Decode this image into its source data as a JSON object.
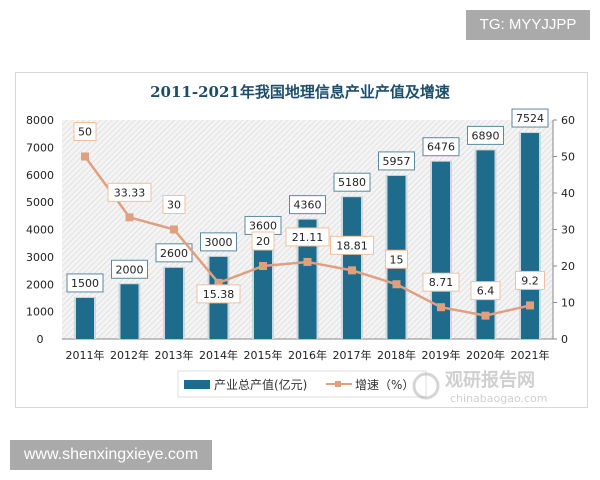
{
  "watermark_top": "TG: MYYJJPP",
  "watermark_bottom": "www.shenxingxieye.com",
  "logo": {
    "cn": "观研报告网",
    "en": "chinabaogao.com"
  },
  "chart_data": {
    "type": "bar+line",
    "title": "2011-2021年我国地理信息产业产值及增速",
    "categories": [
      "2011年",
      "2012年",
      "2013年",
      "2014年",
      "2015年",
      "2016年",
      "2017年",
      "2018年",
      "2019年",
      "2020年",
      "2021年"
    ],
    "series": [
      {
        "name": "产业总产值(亿元)",
        "type": "bar",
        "axis": "left",
        "color": "#1f6b8c",
        "values": [
          1500,
          2000,
          2600,
          3000,
          3600,
          4360,
          5180,
          5957,
          6476,
          6890,
          7524
        ]
      },
      {
        "name": "增速（%）",
        "type": "line",
        "axis": "right",
        "color": "#e0a080",
        "values": [
          50,
          33.33,
          30,
          15.38,
          20,
          21.11,
          18.81,
          15,
          8.71,
          6.4,
          9.2
        ]
      }
    ],
    "y_left": {
      "min": 0,
      "max": 8000,
      "ticks": [
        0,
        1000,
        2000,
        3000,
        4000,
        5000,
        6000,
        7000,
        8000
      ]
    },
    "y_right": {
      "min": 0,
      "max": 60,
      "ticks": [
        0,
        10,
        20,
        30,
        40,
        50,
        60
      ]
    },
    "legend": "bottom"
  }
}
